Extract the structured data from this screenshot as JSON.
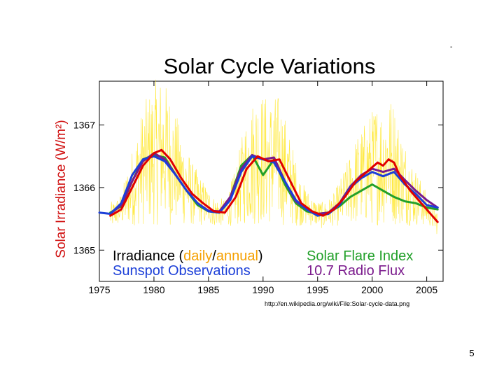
{
  "chart_data": {
    "type": "line",
    "title": "Solar Cycle Variations",
    "ylabel": "Solar Irradiance (W/m²)",
    "xlabel": "",
    "xlim": [
      1975,
      2006.5
    ],
    "ylim": [
      1364.5,
      1367.7
    ],
    "x_ticks": [
      1975,
      1980,
      1985,
      1990,
      1995,
      2000,
      2005
    ],
    "y_ticks": [
      1365,
      1366,
      1367
    ],
    "legend": {
      "irradiance_prefix": "Irradiance (",
      "daily": "daily",
      "slash": "/",
      "annual": "annual",
      "irradiance_suffix": ")",
      "sunspot": "Sunspot Observations",
      "flare": "Solar Flare Index",
      "radio": "10.7 Radio Flux"
    },
    "series": [
      {
        "name": "Irradiance (annual)",
        "color": "#e00000",
        "x": [
          1976,
          1977,
          1978,
          1979,
          1980,
          1980.7,
          1981.5,
          1982.5,
          1983.5,
          1984.5,
          1985.5,
          1986.5,
          1987.5,
          1988.5,
          1989.5,
          1990.5,
          1991.5,
          1992.5,
          1993.5,
          1994.5,
          1995.5,
          1996.5,
          1997.5,
          1998.5,
          1999.5,
          2000.5,
          2001,
          2001.5,
          2002,
          2002.5,
          2003.5,
          2004.5,
          2005.5,
          2006
        ],
        "values": [
          1365.55,
          1365.65,
          1366.0,
          1366.35,
          1366.55,
          1366.6,
          1366.45,
          1366.15,
          1365.9,
          1365.75,
          1365.62,
          1365.6,
          1365.85,
          1366.3,
          1366.5,
          1366.42,
          1366.45,
          1366.1,
          1365.75,
          1365.62,
          1365.55,
          1365.65,
          1365.85,
          1366.1,
          1366.25,
          1366.4,
          1366.35,
          1366.45,
          1366.4,
          1366.2,
          1365.95,
          1365.75,
          1365.55,
          1365.45
        ]
      },
      {
        "name": "Sunspot Observations",
        "color": "#1c3fd8",
        "x": [
          1975,
          1976,
          1977,
          1978,
          1979,
          1980,
          1981,
          1982,
          1983,
          1984,
          1985,
          1986,
          1987,
          1988,
          1989,
          1990,
          1991,
          1992,
          1993,
          1994,
          1995,
          1996,
          1997,
          1998,
          1999,
          2000,
          2001,
          2002,
          2003,
          2004,
          2005,
          2006
        ],
        "values": [
          1365.6,
          1365.58,
          1365.75,
          1366.2,
          1366.45,
          1366.5,
          1366.42,
          1366.2,
          1365.95,
          1365.75,
          1365.62,
          1365.6,
          1365.8,
          1366.25,
          1366.5,
          1366.45,
          1366.4,
          1366.1,
          1365.8,
          1365.65,
          1365.55,
          1365.58,
          1365.72,
          1366.0,
          1366.15,
          1366.25,
          1366.18,
          1366.25,
          1366.05,
          1365.9,
          1365.72,
          1365.68
        ]
      },
      {
        "name": "Solar Flare Index",
        "color": "#22a02a",
        "x": [
          1976,
          1977,
          1978,
          1979,
          1980,
          1981,
          1982,
          1983,
          1984,
          1985,
          1986,
          1987,
          1988,
          1989,
          1990,
          1991,
          1992,
          1993,
          1994,
          1995,
          1996,
          1997,
          1998,
          1999,
          2000,
          2001,
          2002,
          2003,
          2004,
          2005,
          2006
        ],
        "values": [
          1365.6,
          1365.7,
          1366.1,
          1366.45,
          1366.52,
          1366.48,
          1366.2,
          1365.95,
          1365.72,
          1365.62,
          1365.6,
          1365.85,
          1366.35,
          1366.52,
          1366.2,
          1366.45,
          1366.05,
          1365.75,
          1365.62,
          1365.58,
          1365.6,
          1365.7,
          1365.85,
          1365.95,
          1366.05,
          1365.95,
          1365.85,
          1365.78,
          1365.75,
          1365.68,
          1365.65
        ]
      },
      {
        "name": "10.7 Radio Flux",
        "color": "#7a1a8c",
        "x": [
          1976,
          1977,
          1978,
          1979,
          1980,
          1981,
          1982,
          1983,
          1984,
          1985,
          1986,
          1987,
          1988,
          1989,
          1990,
          1991,
          1992,
          1993,
          1994,
          1995,
          1996,
          1997,
          1998,
          1999,
          2000,
          2001,
          2002,
          2003,
          2004,
          2005,
          2006
        ],
        "values": [
          1365.58,
          1365.72,
          1366.1,
          1366.42,
          1366.55,
          1366.45,
          1366.2,
          1365.95,
          1365.75,
          1365.63,
          1365.62,
          1365.85,
          1366.3,
          1366.52,
          1366.45,
          1366.48,
          1366.1,
          1365.78,
          1365.65,
          1365.58,
          1365.6,
          1365.75,
          1366.02,
          1366.2,
          1366.3,
          1366.25,
          1366.3,
          1366.12,
          1365.95,
          1365.8,
          1365.68
        ]
      }
    ],
    "daily_series": {
      "name": "Irradiance (daily)",
      "color": "#ffe100",
      "note": "dense daily scatter around annual curve"
    }
  },
  "colors": {
    "daily": "#f5a000",
    "annual": "#f5a000",
    "ylabel": "#d01010"
  },
  "source_url": "http://en.wikipedia.org/wiki/File:Solar-cycle-data.png",
  "page_number": "5",
  "corner_mark": "-"
}
